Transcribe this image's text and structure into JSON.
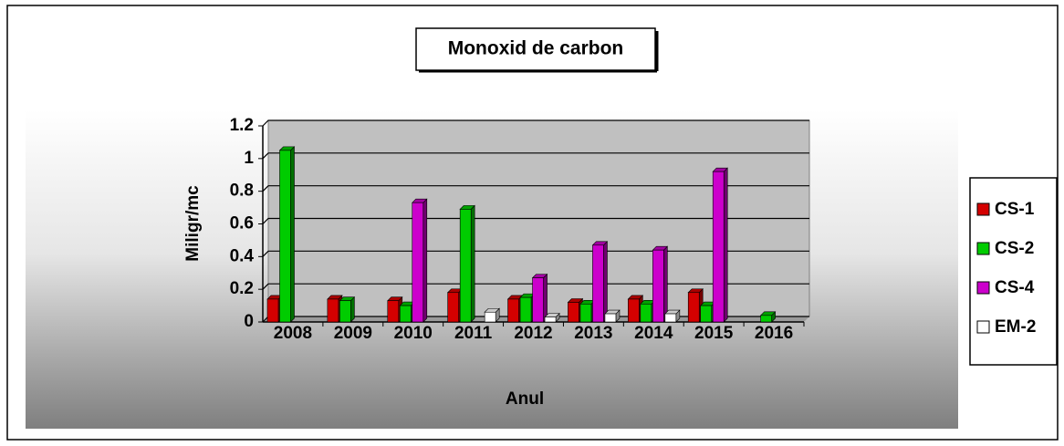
{
  "chart_data": {
    "type": "bar",
    "title": "Monoxid de carbon",
    "xlabel": "Anul",
    "ylabel": "Miligr/mc",
    "categories": [
      "2008",
      "2009",
      "2010",
      "2011",
      "2012",
      "2013",
      "2014",
      "2015",
      "2016"
    ],
    "series": [
      {
        "name": "CS-1",
        "color": "#d40000",
        "values": [
          0.14,
          0.14,
          0.13,
          0.18,
          0.14,
          0.12,
          0.14,
          0.18,
          null
        ]
      },
      {
        "name": "CS-2",
        "color": "#00cc00",
        "values": [
          1.05,
          0.13,
          0.1,
          0.69,
          0.15,
          0.11,
          0.11,
          0.1,
          0.04
        ]
      },
      {
        "name": "CS-4",
        "color": "#cc00cc",
        "values": [
          null,
          null,
          0.73,
          null,
          0.27,
          0.47,
          0.44,
          0.92,
          null
        ]
      },
      {
        "name": "EM-2",
        "color": "#ffffff",
        "values": [
          null,
          null,
          null,
          0.06,
          0.03,
          0.05,
          0.05,
          null,
          null
        ]
      }
    ],
    "ylim": [
      0,
      1.2
    ],
    "yticks": [
      0,
      0.2,
      0.4,
      0.6,
      0.8,
      1,
      1.2
    ],
    "grid": true,
    "legend": "right"
  }
}
